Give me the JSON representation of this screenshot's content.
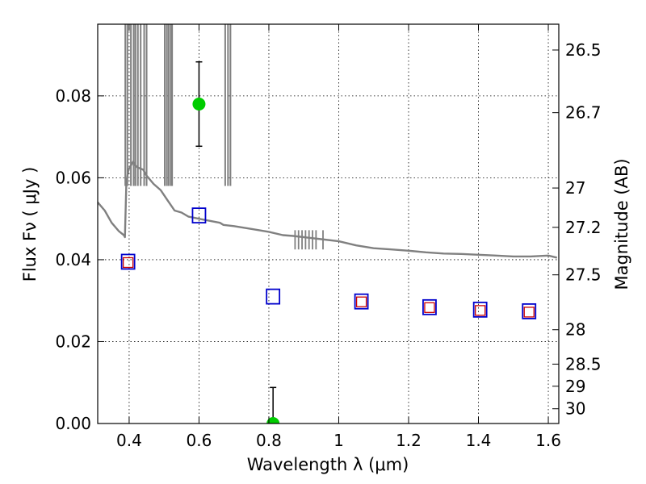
{
  "chart_data": {
    "type": "scatter",
    "xlabel": "Wavelength  λ (μm)",
    "ylabel": "Flux  Fν  ( μJy )",
    "y2label": "Magnitude (AB)",
    "xlim": [
      0.31,
      1.63
    ],
    "ylim": [
      0.0,
      0.0975
    ],
    "x_ticks": [
      0.4,
      0.6,
      0.8,
      1.0,
      1.2,
      1.4,
      1.6
    ],
    "x_tick_labels": [
      "0.4",
      "0.6",
      "0.8",
      "1",
      "1.2",
      "1.4",
      "1.6"
    ],
    "y_ticks": [
      0.0,
      0.02,
      0.04,
      0.06,
      0.08
    ],
    "y_tick_labels": [
      "0.00",
      "0.02",
      "0.04",
      "0.06",
      "0.08"
    ],
    "y2_ticks": [
      {
        "label": "26.5",
        "flux": 0.0912
      },
      {
        "label": "26.7",
        "flux": 0.0759
      },
      {
        "label": "27",
        "flux": 0.0575
      },
      {
        "label": "27.2",
        "flux": 0.0479
      },
      {
        "label": "27.5",
        "flux": 0.0363
      },
      {
        "label": "28",
        "flux": 0.0229
      },
      {
        "label": "28.5",
        "flux": 0.0145
      },
      {
        "label": "29",
        "flux": 0.0091
      },
      {
        "label": "30",
        "flux": 0.0036
      }
    ],
    "grid": true,
    "colors": {
      "model": "#808080",
      "observed": "#00cc00",
      "model_band": "#0000cc",
      "model_band_alt": "#cc0000",
      "axes": "#000000",
      "grid": "#000000"
    },
    "series": [
      {
        "name": "model spectrum",
        "kind": "line",
        "x": [
          0.31,
          0.33,
          0.35,
          0.37,
          0.385,
          0.388,
          0.392,
          0.398,
          0.405,
          0.412,
          0.418,
          0.425,
          0.44,
          0.45,
          0.47,
          0.49,
          0.51,
          0.53,
          0.55,
          0.57,
          0.6,
          0.63,
          0.66,
          0.67,
          0.7,
          0.75,
          0.8,
          0.84,
          0.87,
          0.9,
          0.95,
          1.0,
          1.05,
          1.1,
          1.15,
          1.2,
          1.25,
          1.3,
          1.35,
          1.4,
          1.45,
          1.5,
          1.55,
          1.6,
          1.625
        ],
        "y": [
          0.054,
          0.052,
          0.049,
          0.047,
          0.046,
          0.0455,
          0.059,
          0.062,
          0.063,
          0.064,
          0.063,
          0.0625,
          0.062,
          0.0605,
          0.0585,
          0.057,
          0.0545,
          0.052,
          0.0515,
          0.0505,
          0.05,
          0.0495,
          0.049,
          0.0485,
          0.0482,
          0.0475,
          0.0468,
          0.046,
          0.0458,
          0.0455,
          0.045,
          0.0445,
          0.0435,
          0.0428,
          0.0425,
          0.0422,
          0.0418,
          0.0415,
          0.0414,
          0.0412,
          0.041,
          0.0408,
          0.0408,
          0.041,
          0.0405
        ]
      },
      {
        "name": "observed flux",
        "kind": "errorbar",
        "points": [
          {
            "x": 0.6,
            "y": 0.078,
            "err": 0.0103
          },
          {
            "x": 0.812,
            "y": 0.0,
            "err": 0.0088
          }
        ]
      },
      {
        "name": "model band flux",
        "kind": "marker-square",
        "points": [
          {
            "x": 0.397,
            "y": 0.0395
          },
          {
            "x": 0.6,
            "y": 0.0508
          },
          {
            "x": 0.812,
            "y": 0.031
          },
          {
            "x": 1.065,
            "y": 0.0298
          },
          {
            "x": 1.26,
            "y": 0.0284
          },
          {
            "x": 1.405,
            "y": 0.0278
          },
          {
            "x": 1.545,
            "y": 0.0274
          }
        ]
      },
      {
        "name": "model band flux (alt)",
        "kind": "marker-square-small",
        "points": [
          {
            "x": 0.397,
            "y": 0.0393
          },
          {
            "x": 1.065,
            "y": 0.0297
          },
          {
            "x": 1.26,
            "y": 0.0283
          },
          {
            "x": 1.405,
            "y": 0.0276
          },
          {
            "x": 1.545,
            "y": 0.0272
          }
        ]
      }
    ]
  }
}
